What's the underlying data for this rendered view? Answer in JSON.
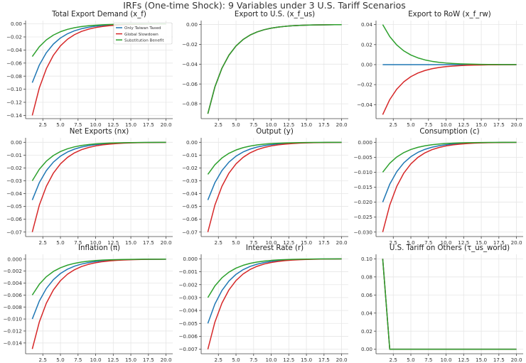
{
  "figure": {
    "suptitle": "IRFs (One-time Shock): 9 Variables under 3 U.S. Tariff Scenarios"
  },
  "legend": {
    "entries": [
      {
        "label": "Only Taiwan Taxed",
        "color": "#1f77b4"
      },
      {
        "label": "Global Slowdown",
        "color": "#d62728"
      },
      {
        "label": "Substitution Benefit",
        "color": "#2ca02c"
      }
    ]
  },
  "chart_data": [
    {
      "type": "line",
      "title": "Total Export Demand (x_f)",
      "ylim": [
        -0.145,
        0.005
      ],
      "yticks": [
        0.0,
        -0.02,
        -0.04,
        -0.06,
        -0.08,
        -0.1,
        -0.12,
        -0.14
      ],
      "ytick_labels": [
        "0.00",
        "−0.02",
        "−0.04",
        "−0.06",
        "−0.08",
        "−0.10",
        "−0.12",
        "−0.14"
      ],
      "xticks": [
        2.5,
        5.0,
        7.5,
        10.0,
        12.5,
        15.0,
        17.5,
        20.0
      ],
      "xtick_labels": [
        "2.5",
        "5.0",
        "7.5",
        "10.0",
        "12.5",
        "15.0",
        "17.5",
        "20.0"
      ],
      "x": [
        1,
        2,
        3,
        4,
        5,
        6,
        7,
        8,
        9,
        10,
        11,
        12,
        13,
        14,
        15,
        16,
        17,
        18,
        19,
        20
      ],
      "series": [
        {
          "name": "Only Taiwan Taxed",
          "color": "#1f77b4",
          "start": -0.09,
          "decay": 0.7
        },
        {
          "name": "Global Slowdown",
          "color": "#d62728",
          "start": -0.14,
          "decay": 0.7
        },
        {
          "name": "Substitution Benefit",
          "color": "#2ca02c",
          "start": -0.05,
          "decay": 0.7
        }
      ],
      "legend": "top-right"
    },
    {
      "type": "line",
      "title": "Export to U.S. (x_f_us)",
      "ylim": [
        -0.095,
        0.004
      ],
      "yticks": [
        0.0,
        -0.02,
        -0.04,
        -0.06,
        -0.08
      ],
      "ytick_labels": [
        "0.00",
        "−0.02",
        "−0.04",
        "−0.06",
        "−0.08"
      ],
      "xticks": [
        2.5,
        5.0,
        7.5,
        10.0,
        12.5,
        15.0,
        17.5,
        20.0
      ],
      "xtick_labels": [
        "2.5",
        "5.0",
        "7.5",
        "10.0",
        "12.5",
        "15.0",
        "17.5",
        "20.0"
      ],
      "x": [
        1,
        2,
        3,
        4,
        5,
        6,
        7,
        8,
        9,
        10,
        11,
        12,
        13,
        14,
        15,
        16,
        17,
        18,
        19,
        20
      ],
      "series": [
        {
          "name": "Only Taiwan Taxed",
          "color": "#1f77b4",
          "start": -0.09,
          "decay": 0.7
        },
        {
          "name": "Global Slowdown",
          "color": "#d62728",
          "start": -0.09,
          "decay": 0.7
        },
        {
          "name": "Substitution Benefit",
          "color": "#2ca02c",
          "start": -0.09,
          "decay": 0.7
        }
      ]
    },
    {
      "type": "line",
      "title": "Export to RoW (x_f_rw)",
      "ylim": [
        -0.054,
        0.044
      ],
      "yticks": [
        0.04,
        0.02,
        0.0,
        -0.02,
        -0.04
      ],
      "ytick_labels": [
        "0.04",
        "0.02",
        "0.00",
        "−0.02",
        "−0.04"
      ],
      "xticks": [
        2.5,
        5.0,
        7.5,
        10.0,
        12.5,
        15.0,
        17.5,
        20.0
      ],
      "xtick_labels": [
        "2.5",
        "5.0",
        "7.5",
        "10.0",
        "12.5",
        "15.0",
        "17.5",
        "20.0"
      ],
      "x": [
        1,
        2,
        3,
        4,
        5,
        6,
        7,
        8,
        9,
        10,
        11,
        12,
        13,
        14,
        15,
        16,
        17,
        18,
        19,
        20
      ],
      "series": [
        {
          "name": "Only Taiwan Taxed",
          "color": "#1f77b4",
          "start": 0.0,
          "decay": 0.7
        },
        {
          "name": "Global Slowdown",
          "color": "#d62728",
          "start": -0.05,
          "decay": 0.7
        },
        {
          "name": "Substitution Benefit",
          "color": "#2ca02c",
          "start": 0.04,
          "decay": 0.7
        }
      ]
    },
    {
      "type": "line",
      "title": "Net Exports (nx)",
      "ylim": [
        -0.0735,
        0.0035
      ],
      "yticks": [
        0.0,
        -0.01,
        -0.02,
        -0.03,
        -0.04,
        -0.05,
        -0.06,
        -0.07
      ],
      "ytick_labels": [
        "0.00",
        "−0.01",
        "−0.02",
        "−0.03",
        "−0.04",
        "−0.05",
        "−0.06",
        "−0.07"
      ],
      "xticks": [
        2.5,
        5.0,
        7.5,
        10.0,
        12.5,
        15.0,
        17.5,
        20.0
      ],
      "xtick_labels": [
        "2.5",
        "5.0",
        "7.5",
        "10.0",
        "12.5",
        "15.0",
        "17.5",
        "20.0"
      ],
      "x": [
        1,
        2,
        3,
        4,
        5,
        6,
        7,
        8,
        9,
        10,
        11,
        12,
        13,
        14,
        15,
        16,
        17,
        18,
        19,
        20
      ],
      "series": [
        {
          "name": "Only Taiwan Taxed",
          "color": "#1f77b4",
          "start": -0.045,
          "decay": 0.7
        },
        {
          "name": "Global Slowdown",
          "color": "#d62728",
          "start": -0.07,
          "decay": 0.7
        },
        {
          "name": "Substitution Benefit",
          "color": "#2ca02c",
          "start": -0.03,
          "decay": 0.7
        }
      ]
    },
    {
      "type": "line",
      "title": "Output (y)",
      "ylim": [
        -0.0735,
        0.0035
      ],
      "yticks": [
        0.0,
        -0.01,
        -0.02,
        -0.03,
        -0.04,
        -0.05,
        -0.06,
        -0.07
      ],
      "ytick_labels": [
        "0.00",
        "−0.01",
        "−0.02",
        "−0.03",
        "−0.04",
        "−0.05",
        "−0.06",
        "−0.07"
      ],
      "xticks": [
        2.5,
        5.0,
        7.5,
        10.0,
        12.5,
        15.0,
        17.5,
        20.0
      ],
      "xtick_labels": [
        "2.5",
        "5.0",
        "7.5",
        "10.0",
        "12.5",
        "15.0",
        "17.5",
        "20.0"
      ],
      "x": [
        1,
        2,
        3,
        4,
        5,
        6,
        7,
        8,
        9,
        10,
        11,
        12,
        13,
        14,
        15,
        16,
        17,
        18,
        19,
        20
      ],
      "series": [
        {
          "name": "Only Taiwan Taxed",
          "color": "#1f77b4",
          "start": -0.045,
          "decay": 0.7
        },
        {
          "name": "Global Slowdown",
          "color": "#d62728",
          "start": -0.07,
          "decay": 0.7
        },
        {
          "name": "Substitution Benefit",
          "color": "#2ca02c",
          "start": -0.025,
          "decay": 0.7
        }
      ]
    },
    {
      "type": "line",
      "title": "Consumption (c)",
      "ylim": [
        -0.0315,
        0.0015
      ],
      "yticks": [
        0.0,
        -0.005,
        -0.01,
        -0.015,
        -0.02,
        -0.025,
        -0.03
      ],
      "ytick_labels": [
        "0.000",
        "−0.005",
        "−0.010",
        "−0.015",
        "−0.020",
        "−0.025",
        "−0.030"
      ],
      "xticks": [
        2.5,
        5.0,
        7.5,
        10.0,
        12.5,
        15.0,
        17.5,
        20.0
      ],
      "xtick_labels": [
        "2.5",
        "5.0",
        "7.5",
        "10.0",
        "12.5",
        "15.0",
        "17.5",
        "20.0"
      ],
      "x": [
        1,
        2,
        3,
        4,
        5,
        6,
        7,
        8,
        9,
        10,
        11,
        12,
        13,
        14,
        15,
        16,
        17,
        18,
        19,
        20
      ],
      "series": [
        {
          "name": "Only Taiwan Taxed",
          "color": "#1f77b4",
          "start": -0.02,
          "decay": 0.7
        },
        {
          "name": "Global Slowdown",
          "color": "#d62728",
          "start": -0.03,
          "decay": 0.7
        },
        {
          "name": "Substitution Benefit",
          "color": "#2ca02c",
          "start": -0.01,
          "decay": 0.7
        }
      ]
    },
    {
      "type": "line",
      "title": "Inflation (π)",
      "ylim": [
        -0.0158,
        0.0008
      ],
      "yticks": [
        0.0,
        -0.002,
        -0.004,
        -0.006,
        -0.008,
        -0.01,
        -0.012,
        -0.014
      ],
      "ytick_labels": [
        "0.000",
        "−0.002",
        "−0.004",
        "−0.006",
        "−0.008",
        "−0.010",
        "−0.012",
        "−0.014"
      ],
      "xticks": [
        2.5,
        5.0,
        7.5,
        10.0,
        12.5,
        15.0,
        17.5,
        20.0
      ],
      "xtick_labels": [
        "2.5",
        "5.0",
        "7.5",
        "10.0",
        "12.5",
        "15.0",
        "17.5",
        "20.0"
      ],
      "x": [
        1,
        2,
        3,
        4,
        5,
        6,
        7,
        8,
        9,
        10,
        11,
        12,
        13,
        14,
        15,
        16,
        17,
        18,
        19,
        20
      ],
      "series": [
        {
          "name": "Only Taiwan Taxed",
          "color": "#1f77b4",
          "start": -0.01,
          "decay": 0.7
        },
        {
          "name": "Global Slowdown",
          "color": "#d62728",
          "start": -0.015,
          "decay": 0.7
        },
        {
          "name": "Substitution Benefit",
          "color": "#2ca02c",
          "start": -0.006,
          "decay": 0.7
        }
      ]
    },
    {
      "type": "line",
      "title": "Interest Rate (r)",
      "ylim": [
        -0.00735,
        0.00035
      ],
      "yticks": [
        0.0,
        -0.001,
        -0.002,
        -0.003,
        -0.004,
        -0.005,
        -0.006,
        -0.007
      ],
      "ytick_labels": [
        "0.000",
        "−0.001",
        "−0.002",
        "−0.003",
        "−0.004",
        "−0.005",
        "−0.006",
        "−0.007"
      ],
      "xticks": [
        2.5,
        5.0,
        7.5,
        10.0,
        12.5,
        15.0,
        17.5,
        20.0
      ],
      "xtick_labels": [
        "2.5",
        "5.0",
        "7.5",
        "10.0",
        "12.5",
        "15.0",
        "17.5",
        "20.0"
      ],
      "x": [
        1,
        2,
        3,
        4,
        5,
        6,
        7,
        8,
        9,
        10,
        11,
        12,
        13,
        14,
        15,
        16,
        17,
        18,
        19,
        20
      ],
      "series": [
        {
          "name": "Only Taiwan Taxed",
          "color": "#1f77b4",
          "start": -0.005,
          "decay": 0.7
        },
        {
          "name": "Global Slowdown",
          "color": "#d62728",
          "start": -0.007,
          "decay": 0.7
        },
        {
          "name": "Substitution Benefit",
          "color": "#2ca02c",
          "start": -0.003,
          "decay": 0.7
        }
      ]
    },
    {
      "type": "line",
      "title": "U.S. Tariff on Others (τ_us_world)",
      "ylim": [
        -0.005,
        0.105
      ],
      "yticks": [
        0.0,
        0.02,
        0.04,
        0.06,
        0.08,
        0.1
      ],
      "ytick_labels": [
        "0.00",
        "0.02",
        "0.04",
        "0.06",
        "0.08",
        "0.10"
      ],
      "xticks": [
        2.5,
        5.0,
        7.5,
        10.0,
        12.5,
        15.0,
        17.5,
        20.0
      ],
      "xtick_labels": [
        "2.5",
        "5.0",
        "7.5",
        "10.0",
        "12.5",
        "15.0",
        "17.5",
        "20.0"
      ],
      "x": [
        1,
        2,
        3,
        4,
        5,
        6,
        7,
        8,
        9,
        10,
        11,
        12,
        13,
        14,
        15,
        16,
        17,
        18,
        19,
        20
      ],
      "series": [
        {
          "name": "Only Taiwan Taxed",
          "color": "#1f77b4",
          "start": 0.1,
          "decay": 0.0
        },
        {
          "name": "Global Slowdown",
          "color": "#d62728",
          "start": 0.1,
          "decay": 0.0
        },
        {
          "name": "Substitution Benefit",
          "color": "#2ca02c",
          "start": 0.1,
          "decay": 0.0
        }
      ]
    }
  ]
}
